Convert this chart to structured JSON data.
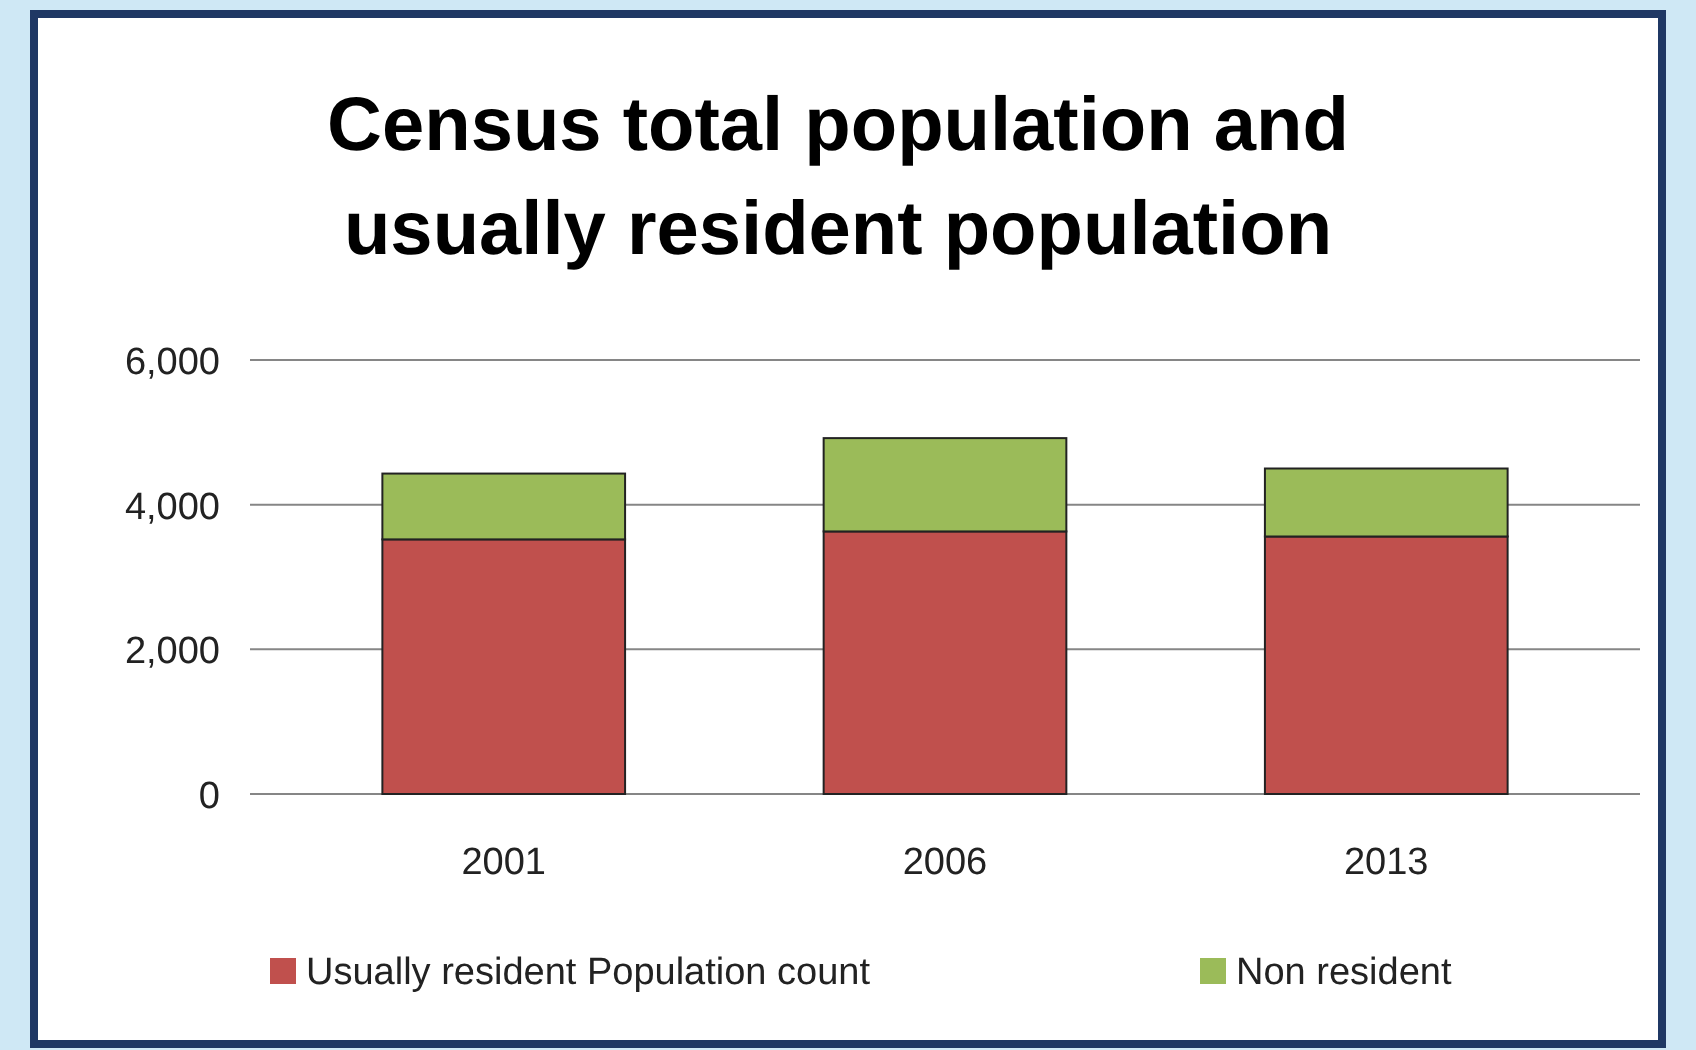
{
  "chart_data": {
    "type": "bar",
    "title": "Census total population and usually resident  population",
    "categories": [
      "2001",
      "2006",
      "2013"
    ],
    "series": [
      {
        "name": "Usually resident Population count",
        "color": "#c0504d",
        "values": [
          3520,
          3630,
          3560
        ]
      },
      {
        "name": "Non resident",
        "color": "#9bbb59",
        "values": [
          910,
          1290,
          940
        ]
      }
    ],
    "stacked": true,
    "ylim": [
      0,
      6000
    ],
    "yticks": [
      {
        "value": 0,
        "label": "0"
      },
      {
        "value": 2000,
        "label": "2,000"
      },
      {
        "value": 4000,
        "label": "4,000"
      },
      {
        "value": 6000,
        "label": "6,000"
      }
    ],
    "grid": "y",
    "legend": "bottom"
  }
}
